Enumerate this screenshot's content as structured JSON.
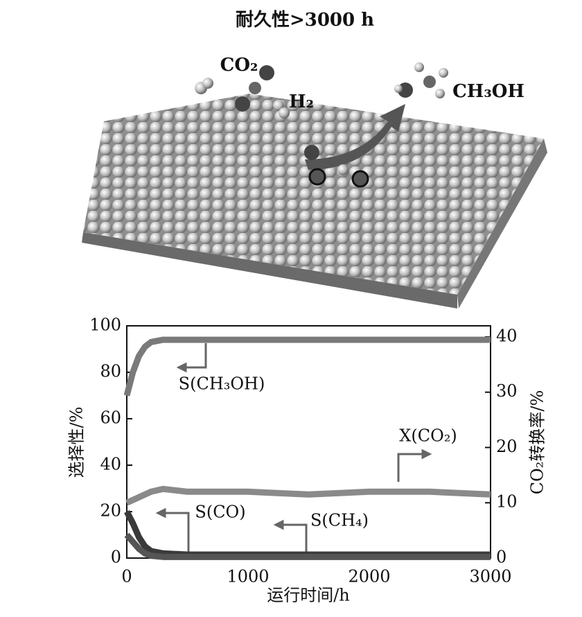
{
  "chart_data": {
    "type": "line",
    "title": "耐久性>3000 h",
    "illustration_labels": [
      "CO₂",
      "H₂",
      "CH₃OH"
    ],
    "x_label": "运行时间/h",
    "y_label": "选择性/%",
    "y2_label": "CO₂转换率/%",
    "x": [
      0,
      50,
      100,
      150,
      200,
      300,
      500,
      1000,
      1500,
      2000,
      2500,
      3000
    ],
    "series": [
      {
        "name": "S(CH₃OH)",
        "color": "#7a7a7a",
        "values": [
          70,
          80,
          87,
          91,
          93,
          94,
          94,
          94,
          94,
          94,
          94,
          94
        ]
      },
      {
        "name": "X(CO₂)",
        "color": "#8a8a8a",
        "axis": "y2",
        "values": [
          10,
          10.5,
          11,
          11.5,
          12,
          12.5,
          12,
          12,
          11.5,
          12,
          12,
          11.5
        ]
      },
      {
        "name": "S(CO)",
        "color": "#3a3a3a",
        "values": [
          20,
          15,
          9,
          5,
          3,
          2,
          1.5,
          1.5,
          1.5,
          1.5,
          1.5,
          1.5
        ]
      },
      {
        "name": "S(CH₄)",
        "color": "#555555",
        "values": [
          10,
          7,
          4,
          2,
          1,
          0.5,
          0.5,
          0.5,
          0.5,
          0.5,
          0.5,
          0.5
        ]
      }
    ],
    "xlim": [
      0,
      3000
    ],
    "xticks": [
      0,
      1000,
      2000,
      3000
    ],
    "ylim": [
      0,
      100
    ],
    "yticks": [
      0,
      20,
      40,
      60,
      80,
      100
    ],
    "y2lim": [
      0,
      42
    ],
    "y2ticks": [
      0,
      10,
      20,
      30,
      40
    ]
  }
}
